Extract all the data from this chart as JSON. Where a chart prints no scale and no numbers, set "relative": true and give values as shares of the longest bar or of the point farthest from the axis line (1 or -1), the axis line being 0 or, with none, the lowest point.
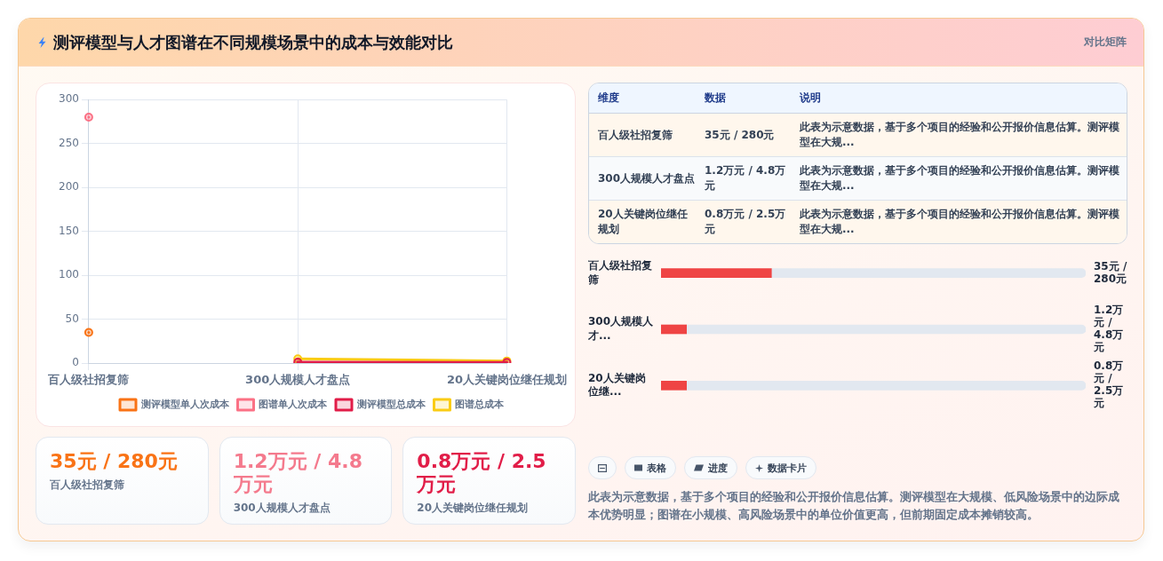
{
  "chart_data": [
    {
      "type": "other",
      "title": "测评模型与人才图谱在不同规模场景中的成本与效能对比",
      "subtitle": "对比矩阵"
    },
    {
      "type": "line",
      "categories": [
        "百人级社招复筛",
        "300人规模人才盘点",
        "20人关键岗位继任规划"
      ],
      "series": [
        {
          "name": "测评模型单人次成本",
          "color": "#f97316",
          "values": [
            35,
            null,
            null
          ]
        },
        {
          "name": "图谱单人次成本",
          "color": "#fb7185",
          "values": [
            280,
            null,
            null
          ]
        },
        {
          "name": "测评模型总成本",
          "color": "#e11d48",
          "values": [
            null,
            1.2,
            0.8
          ]
        },
        {
          "name": "图谱总成本",
          "color": "#facc15",
          "values": [
            null,
            4.8,
            2.5
          ]
        }
      ],
      "ylim": [
        0,
        300
      ],
      "yticks": [
        0,
        50,
        100,
        150,
        200,
        250,
        300
      ],
      "grid": true,
      "legend": "bottom",
      "marker": "circle",
      "line_style": "solid"
    },
    {
      "type": "other",
      "categories": [
        "维度",
        "数据",
        "说明"
      ],
      "cell_labels": [
        [
          "百人级社招复筛",
          "35元 / 280元",
          "此表为示意数据，基于多个项目的经验和公开报价信息估算。测评模型在大规..."
        ],
        [
          "300人规模人才盘点",
          "1.2万元 / 4.8万元",
          "此表为示意数据，基于多个项目的经验和公开报价信息估算。测评模型在大规..."
        ],
        [
          "20人关键岗位继任规划",
          "0.8万元 / 2.5万元",
          "此表为示意数据，基于多个项目的经验和公开报价信息估算。测评模型在大规..."
        ]
      ]
    },
    {
      "type": "bar",
      "orientation": "horizontal",
      "stacked": true,
      "relative": true,
      "categories": [
        "百人级社招复筛",
        "300人规模人才...",
        "20人关键岗位继..."
      ],
      "series": [
        {
          "color": "#ef4444",
          "values": [
            0.26,
            0.06,
            0.06
          ]
        },
        {
          "color": "#e2e8f0",
          "values": [
            0.74,
            0.94,
            0.94
          ]
        }
      ],
      "annotations": [
        "35元 / 280元",
        "1.2万元 / 4.8万元",
        "0.8万元 / 2.5万元"
      ]
    },
    {
      "type": "other",
      "categories": [
        "百人级社招复筛",
        "300人规模人才盘点",
        "20人关键岗位继任规划"
      ],
      "value_labels": [
        "35元 / 280元",
        "1.2万元 / 4.8万元",
        "0.8万元 / 2.5万元"
      ]
    },
    {
      "type": "other",
      "categories": [
        null,
        "表格",
        "进度",
        "数据卡片"
      ],
      "annotations": [
        "此表为示意数据，基于多个项目的经验和公开报价信息估算。测评模型在大规模、低风险场景中的边际成本优势明显；图谱在小规模、高风险场景中的单位价值更高，但前期固定成本摊销较高。"
      ]
    }
  ]
}
